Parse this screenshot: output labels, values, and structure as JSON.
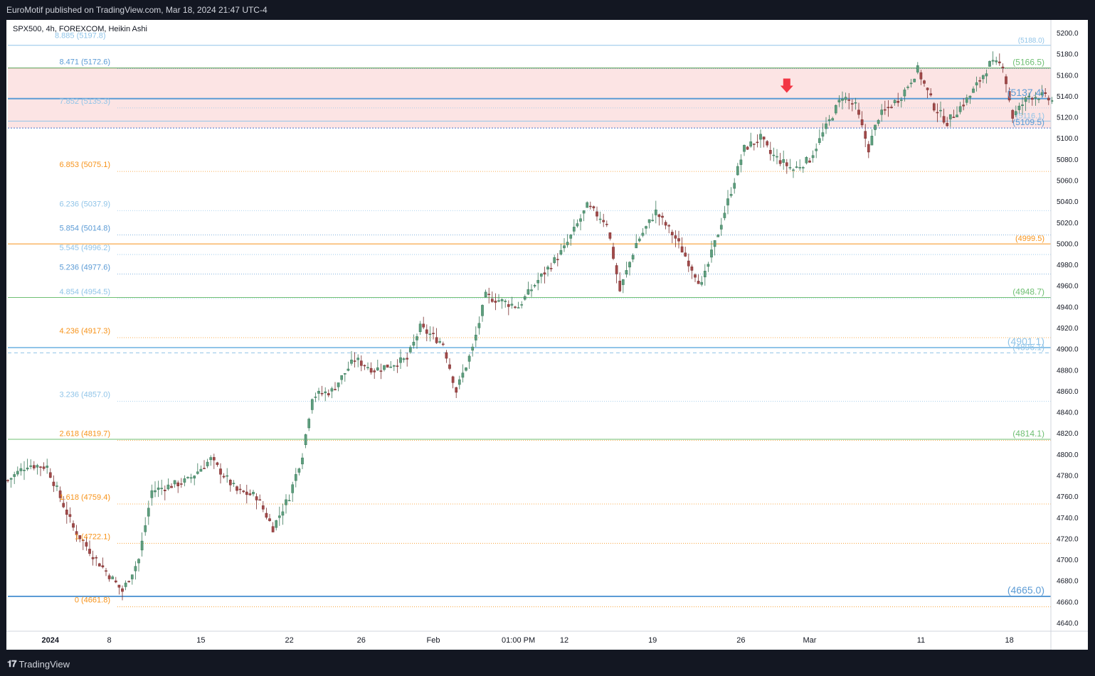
{
  "header": {
    "publisher": "EuroMotif published on TradingView.com, Mar 18, 2024 21:47 UTC-4"
  },
  "symbol_info": "SPX500, 4h, FOREXCOM, Heikin Ashi",
  "footer": {
    "brand": "TradingView"
  },
  "colors": {
    "orange": "#f7931a",
    "blue": "#5b9bd5",
    "lightblue": "#90c4e8",
    "green": "#6fbf73",
    "up": "#3a7a5a",
    "down": "#7a2e2e",
    "zone": "#fce4e4",
    "arrow": "#f23645"
  },
  "chart_data": {
    "type": "candlestick",
    "style": "Heikin Ashi",
    "ylim": [
      4630,
      5210
    ],
    "y_ticks": [
      4640,
      4660,
      4680,
      4700,
      4720,
      4740,
      4760,
      4780,
      4800,
      4820,
      4840,
      4860,
      4880,
      4900,
      4920,
      4940,
      4960,
      4980,
      5000,
      5020,
      5040,
      5060,
      5080,
      5100,
      5120,
      5140,
      5160,
      5180,
      5200
    ],
    "x_ticks": [
      {
        "label": "2024",
        "idx": 13,
        "bold": true
      },
      {
        "label": "8",
        "idx": 31
      },
      {
        "label": "15",
        "idx": 59
      },
      {
        "label": "22",
        "idx": 86
      },
      {
        "label": "26",
        "idx": 108
      },
      {
        "label": "Feb",
        "idx": 130
      },
      {
        "label": "01:00 PM",
        "idx": 156
      },
      {
        "label": "12",
        "idx": 170
      },
      {
        "label": "19",
        "idx": 197
      },
      {
        "label": "26",
        "idx": 224
      },
      {
        "label": "Mar",
        "idx": 245
      },
      {
        "label": "11",
        "idx": 279
      },
      {
        "label": "18",
        "idx": 306
      }
    ],
    "candle_count": 320,
    "waypoints": [
      [
        0,
        4775
      ],
      [
        6,
        4790
      ],
      [
        12,
        4788
      ],
      [
        20,
        4730
      ],
      [
        27,
        4700
      ],
      [
        35,
        4670
      ],
      [
        40,
        4700
      ],
      [
        44,
        4765
      ],
      [
        55,
        4775
      ],
      [
        62,
        4795
      ],
      [
        70,
        4765
      ],
      [
        76,
        4760
      ],
      [
        81,
        4730
      ],
      [
        86,
        4760
      ],
      [
        90,
        4800
      ],
      [
        93,
        4855
      ],
      [
        99,
        4860
      ],
      [
        106,
        4890
      ],
      [
        112,
        4880
      ],
      [
        122,
        4890
      ],
      [
        126,
        4920
      ],
      [
        133,
        4905
      ],
      [
        137,
        4860
      ],
      [
        142,
        4900
      ],
      [
        146,
        4950
      ],
      [
        156,
        4940
      ],
      [
        162,
        4965
      ],
      [
        170,
        4995
      ],
      [
        177,
        5035
      ],
      [
        183,
        5020
      ],
      [
        187,
        4955
      ],
      [
        192,
        5000
      ],
      [
        198,
        5030
      ],
      [
        204,
        5005
      ],
      [
        212,
        4960
      ],
      [
        218,
        5020
      ],
      [
        225,
        5090
      ],
      [
        230,
        5100
      ],
      [
        233,
        5085
      ],
      [
        240,
        5070
      ],
      [
        245,
        5080
      ],
      [
        250,
        5110
      ],
      [
        255,
        5140
      ],
      [
        259,
        5130
      ],
      [
        263,
        5090
      ],
      [
        266,
        5120
      ],
      [
        273,
        5140
      ],
      [
        278,
        5165
      ],
      [
        283,
        5130
      ],
      [
        287,
        5115
      ],
      [
        294,
        5140
      ],
      [
        300,
        5170
      ],
      [
        304,
        5170
      ],
      [
        307,
        5120
      ],
      [
        312,
        5140
      ],
      [
        316,
        5140
      ],
      [
        319,
        5135
      ]
    ],
    "levels": [
      {
        "ratio": "8.471",
        "price": "5172.6",
        "value": 5172.6,
        "color": "#5b9bd5",
        "style": "dotted"
      },
      {
        "ratio": "7.852",
        "price": "5135.3",
        "value": 5135.3,
        "color": "#90c4e8",
        "style": "dotted"
      },
      {
        "ratio": "6.853",
        "price": "5075.1",
        "value": 5075.1,
        "color": "#f7931a",
        "style": "dotted"
      },
      {
        "ratio": "6.236",
        "price": "5037.9",
        "value": 5037.9,
        "color": "#90c4e8",
        "style": "dotted"
      },
      {
        "ratio": "5.854",
        "price": "5014.8",
        "value": 5014.8,
        "color": "#5b9bd5",
        "style": "dotted"
      },
      {
        "ratio": "5.545",
        "price": "4996.2",
        "value": 4996.2,
        "color": "#90c4e8",
        "style": "dotted"
      },
      {
        "ratio": "5.236",
        "price": "4977.6",
        "value": 4977.6,
        "color": "#5b9bd5",
        "style": "dotted"
      },
      {
        "ratio": "4.854",
        "price": "4954.5",
        "value": 4954.5,
        "color": "#90c4e8",
        "style": "dotted"
      },
      {
        "ratio": "4.236",
        "price": "4917.3",
        "value": 4917.3,
        "color": "#f7931a",
        "style": "dotted"
      },
      {
        "ratio": "3.236",
        "price": "4857.0",
        "value": 4857.0,
        "color": "#90c4e8",
        "style": "dotted"
      },
      {
        "ratio": "2.618",
        "price": "4819.7",
        "value": 4819.7,
        "color": "#f7931a",
        "style": "dotted"
      },
      {
        "ratio": "1.618",
        "price": "4759.4",
        "value": 4759.4,
        "color": "#f7931a",
        "style": "dotted"
      },
      {
        "ratio": "1",
        "price": "4722.1",
        "value": 4722.1,
        "color": "#f7931a",
        "style": "dotted"
      },
      {
        "ratio": "0",
        "price": "4661.8",
        "value": 4661.8,
        "color": "#f7931a",
        "style": "dotted"
      }
    ],
    "fib_top_label": "8.885 (5197.8)",
    "right_lines": [
      {
        "label": "(5188.0)",
        "value": 5188.0,
        "color": "#90c4e8",
        "size": 10,
        "width": 1,
        "dash": ""
      },
      {
        "label": "(5166.5)",
        "value": 5166.5,
        "color": "#6fbf73",
        "size": 12,
        "width": 1,
        "dash": ""
      },
      {
        "label": "(5137.4)",
        "value": 5137.4,
        "color": "#5b9bd5",
        "size": 14,
        "width": 2,
        "dash": ""
      },
      {
        "label": "(5116.1)",
        "value": 5116.1,
        "color": "#90c4e8",
        "size": 11,
        "width": 1,
        "dash": ""
      },
      {
        "label": "(5109.5)",
        "value": 5109.5,
        "color": "#5b9bd5",
        "size": 12,
        "width": 1,
        "dash": "2,2"
      },
      {
        "label": "(4999.5)",
        "value": 4999.5,
        "color": "#f7931a",
        "size": 11,
        "width": 1,
        "dash": ""
      },
      {
        "label": "(4948.7)",
        "value": 4948.7,
        "color": "#6fbf73",
        "size": 12,
        "width": 1,
        "dash": ""
      },
      {
        "label": "(4901.1)",
        "value": 4901.1,
        "color": "#90c4e8",
        "size": 14,
        "width": 2,
        "dash": ""
      },
      {
        "label": "(4896.1)",
        "value": 4896.1,
        "color": "#90c4e8",
        "size": 12,
        "width": 1,
        "dash": "5,4"
      },
      {
        "label": "(4814.1)",
        "value": 4814.1,
        "color": "#6fbf73",
        "size": 12,
        "width": 1,
        "dash": ""
      },
      {
        "label": "(4665.0)",
        "value": 4665.0,
        "color": "#5b9bd5",
        "size": 14,
        "width": 2,
        "dash": ""
      }
    ],
    "zone": {
      "top": 5166.5,
      "bottom": 5109.5
    },
    "arrow": {
      "idx": 238,
      "value": 5143
    }
  }
}
